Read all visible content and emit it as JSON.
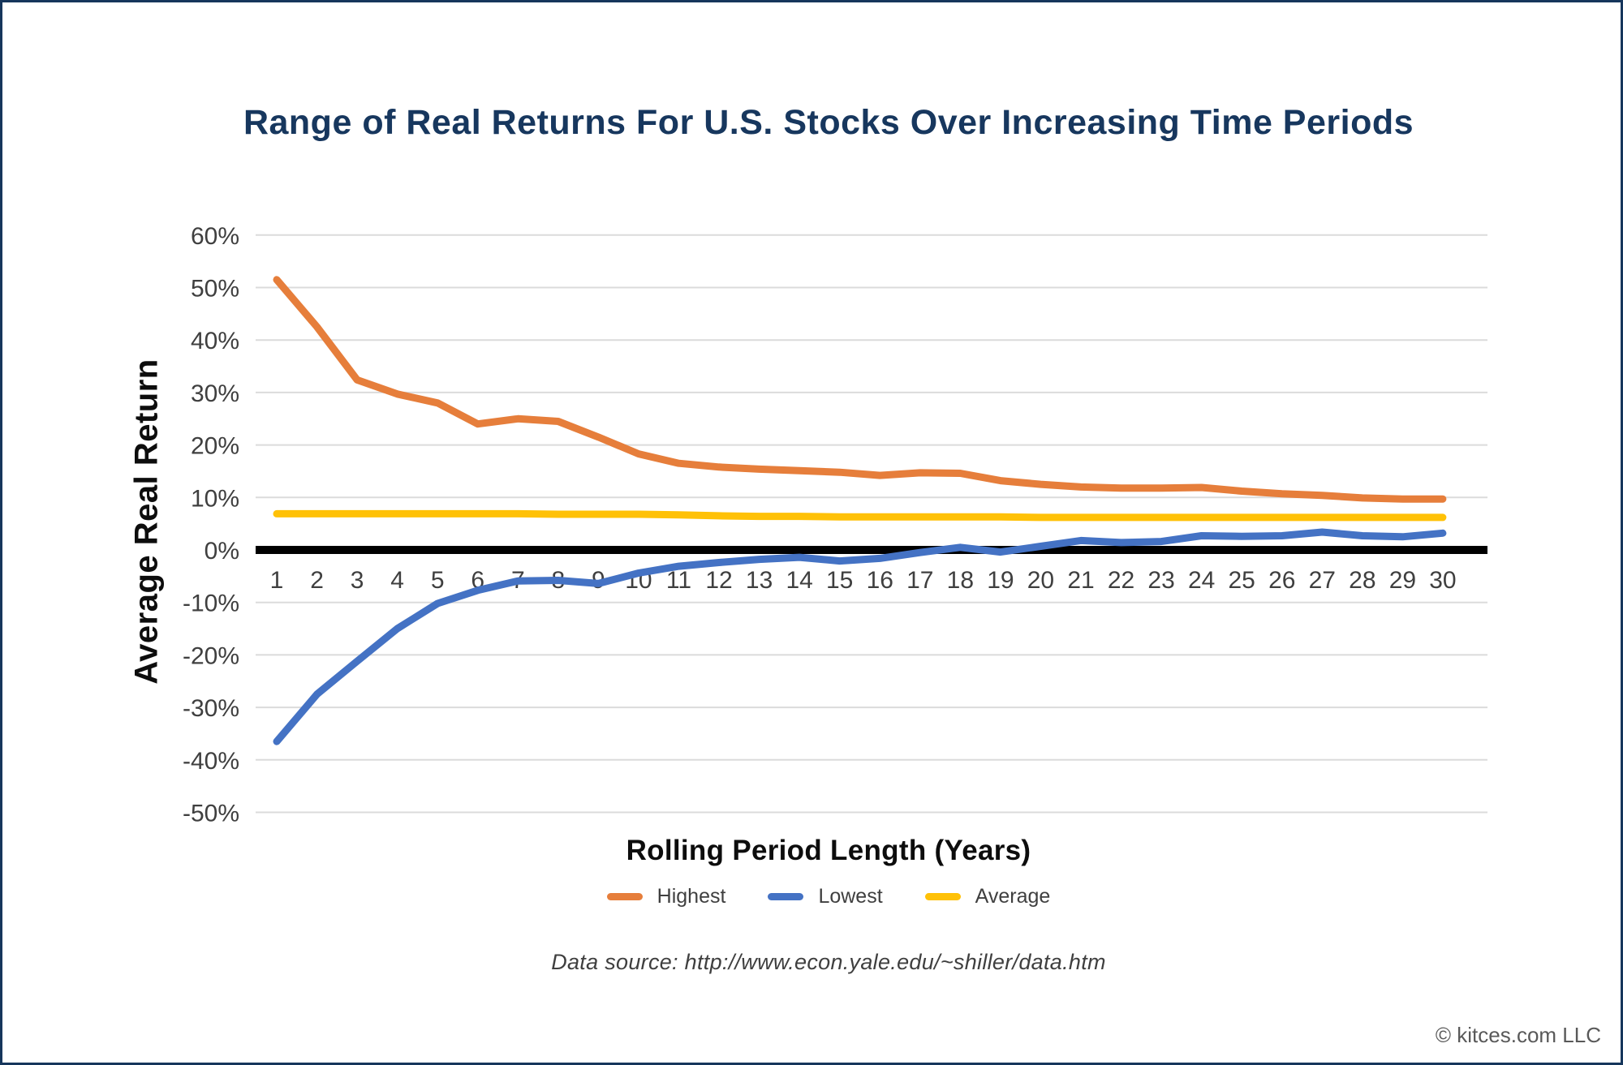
{
  "title": {
    "text": "Range of Real Returns For U.S. Stocks Over Increasing Time Periods"
  },
  "theme": {
    "title_color": "#17375E",
    "border_color": "#16365C",
    "background": "#FFFFFF",
    "grid_color": "#DBDBDB",
    "zero_line_color": "#000000",
    "tick_label_color": "#3F3F3F",
    "axis_title_color": "#0D0D0D",
    "copyright_color": "#595959"
  },
  "legend": {
    "items": [
      {
        "label": "Highest",
        "color": "#E67E3B"
      },
      {
        "label": "Lowest",
        "color": "#4472C4"
      },
      {
        "label": "Average",
        "color": "#FFC107"
      }
    ]
  },
  "footer": {
    "source_note": "Data source: http://www.econ.yale.edu/~shiller/data.htm",
    "copyright": "© kitces.com LLC"
  },
  "chart_data": {
    "type": "line",
    "title": "Range of Real Returns For U.S. Stocks Over Increasing Time Periods",
    "xlabel": "Rolling Period Length (Years)",
    "ylabel": "Average Real Return",
    "x": [
      1,
      2,
      3,
      4,
      5,
      6,
      7,
      8,
      9,
      10,
      11,
      12,
      13,
      14,
      15,
      16,
      17,
      18,
      19,
      20,
      21,
      22,
      23,
      24,
      25,
      26,
      27,
      28,
      29,
      30
    ],
    "ylim": [
      -50,
      60
    ],
    "ytick_step": 10,
    "ytick_labels": [
      "60%",
      "50%",
      "40%",
      "30%",
      "20%",
      "10%",
      "0%",
      "-10%",
      "-20%",
      "-30%",
      "-40%",
      "-50%"
    ],
    "grid": true,
    "legend_position": "bottom",
    "series": [
      {
        "name": "Highest",
        "color": "#E67E3B",
        "values": [
          51.5,
          42.5,
          32.4,
          29.7,
          28.0,
          24.0,
          25.0,
          24.5,
          21.5,
          18.3,
          16.5,
          15.8,
          15.4,
          15.1,
          14.8,
          14.2,
          14.7,
          14.6,
          13.2,
          12.5,
          12.0,
          11.8,
          11.8,
          11.9,
          11.2,
          10.7,
          10.4,
          9.9,
          9.7,
          9.7
        ]
      },
      {
        "name": "Lowest",
        "color": "#4472C4",
        "values": [
          -36.5,
          -27.5,
          -21.2,
          -15.0,
          -10.2,
          -7.7,
          -5.9,
          -5.8,
          -6.4,
          -4.4,
          -3.1,
          -2.4,
          -1.8,
          -1.4,
          -2.1,
          -1.6,
          -0.5,
          0.5,
          -0.4,
          0.7,
          1.8,
          1.4,
          1.6,
          2.7,
          2.6,
          2.7,
          3.4,
          2.7,
          2.5,
          3.2
        ]
      },
      {
        "name": "Average",
        "color": "#FFC107",
        "values": [
          6.9,
          6.9,
          6.9,
          6.9,
          6.9,
          6.9,
          6.9,
          6.8,
          6.8,
          6.8,
          6.7,
          6.5,
          6.4,
          6.4,
          6.3,
          6.3,
          6.3,
          6.3,
          6.3,
          6.2,
          6.2,
          6.2,
          6.2,
          6.2,
          6.2,
          6.2,
          6.2,
          6.2,
          6.2,
          6.2
        ]
      }
    ]
  }
}
